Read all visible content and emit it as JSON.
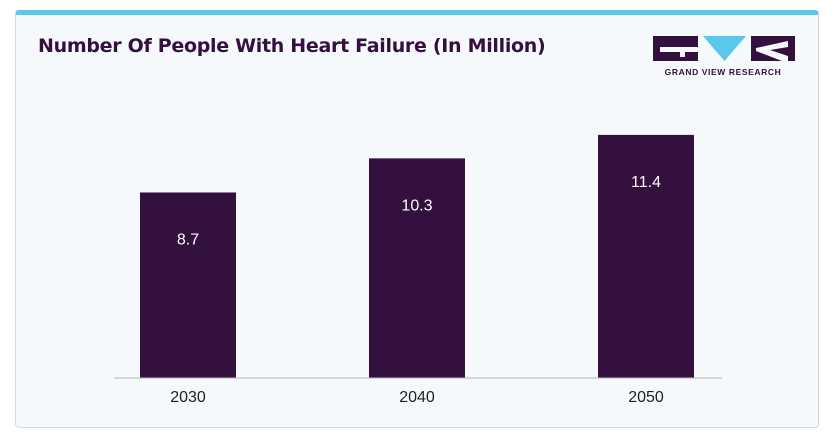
{
  "brand": {
    "name": "GRAND VIEW RESEARCH",
    "logo_icon": "grand-view-research-logo",
    "colors": {
      "accent": "#5ac8ea",
      "brand": "#34103f"
    }
  },
  "chart_data": {
    "type": "bar",
    "title": "Number Of People With Heart Failure (In Million)",
    "categories": [
      "2030",
      "2040",
      "2050"
    ],
    "values": [
      8.7,
      10.3,
      11.4
    ],
    "data_labels": [
      "8.7",
      "10.3",
      "11.4"
    ],
    "xlabel": "",
    "ylabel": "",
    "ylim": [
      0,
      13.6
    ],
    "grid": false,
    "legend": "none",
    "bar_color": "#34103f",
    "label_position": "inside-top"
  }
}
